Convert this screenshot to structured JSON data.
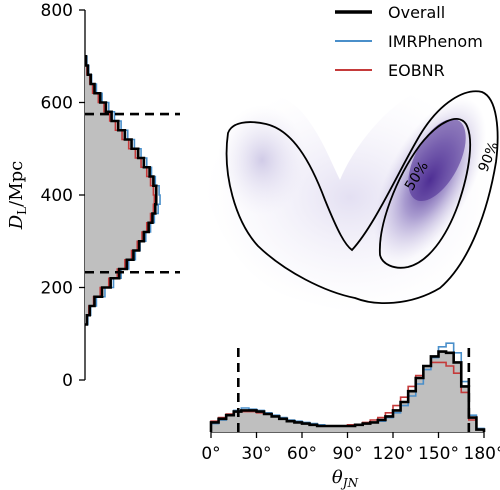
{
  "chart_data": [
    {
      "panel": "distance-marginal",
      "type": "histogram",
      "ylabel_main": "D",
      "ylabel_sub": "L",
      "ylabel_unit": "/Mpc",
      "ylim": [
        0,
        800
      ],
      "yticks": [
        0,
        200,
        400,
        600,
        800
      ],
      "bins": [
        120,
        140,
        160,
        180,
        200,
        220,
        240,
        260,
        280,
        300,
        320,
        340,
        360,
        380,
        400,
        420,
        440,
        460,
        480,
        500,
        520,
        540,
        560,
        580,
        600,
        620,
        640,
        660,
        680
      ],
      "series": [
        {
          "name": "Overall",
          "color": "#000000",
          "filled": true,
          "fill": "#bfbfbf",
          "values": [
            2,
            5,
            10,
            18,
            27,
            36,
            44,
            51,
            57,
            62,
            67,
            71,
            74,
            75,
            75,
            72,
            68,
            62,
            56,
            49,
            42,
            35,
            28,
            22,
            16,
            10,
            6,
            3,
            1
          ]
        },
        {
          "name": "IMRPhenom",
          "color": "#4a8fca",
          "values": [
            3,
            6,
            12,
            21,
            30,
            38,
            46,
            53,
            58,
            64,
            69,
            73,
            77,
            79,
            78,
            74,
            70,
            65,
            59,
            52,
            45,
            38,
            31,
            25,
            18,
            12,
            7,
            4,
            2
          ]
        },
        {
          "name": "EOBNR",
          "color": "#c53a3a",
          "values": [
            2,
            4,
            9,
            16,
            25,
            34,
            42,
            49,
            55,
            60,
            65,
            69,
            72,
            73,
            72,
            69,
            65,
            59,
            53,
            46,
            39,
            32,
            26,
            20,
            14,
            8,
            5,
            2,
            1
          ]
        }
      ],
      "hlines": [
        233,
        575
      ]
    },
    {
      "panel": "inclination-marginal",
      "type": "histogram",
      "xlabel": "θ",
      "xlabel_sub": "JN",
      "xlim": [
        0,
        180
      ],
      "xticks": [
        0,
        30,
        60,
        90,
        120,
        150,
        180
      ],
      "xtick_labels": [
        "0°",
        "30°",
        "60°",
        "90°",
        "120°",
        "150°",
        "180°"
      ],
      "bins": [
        0,
        5,
        10,
        15,
        20,
        25,
        30,
        35,
        40,
        45,
        50,
        55,
        60,
        65,
        70,
        75,
        80,
        85,
        90,
        95,
        100,
        105,
        110,
        115,
        120,
        125,
        130,
        135,
        140,
        145,
        150,
        155,
        160,
        165,
        170,
        175
      ],
      "series": [
        {
          "name": "Overall",
          "color": "#000000",
          "filled": true,
          "fill": "#bfbfbf",
          "values": [
            8,
            11,
            14,
            17,
            18,
            18,
            17,
            15,
            13,
            11,
            9,
            8,
            7,
            6,
            5,
            5,
            5,
            5,
            5,
            6,
            7,
            8,
            10,
            13,
            18,
            25,
            34,
            45,
            55,
            63,
            67,
            66,
            58,
            38,
            12,
            2
          ]
        },
        {
          "name": "IMRPhenom",
          "color": "#4a8fca",
          "values": [
            7,
            10,
            14,
            18,
            20,
            19,
            18,
            16,
            14,
            12,
            10,
            9,
            8,
            7,
            6,
            5,
            5,
            5,
            5,
            6,
            7,
            8,
            9,
            12,
            16,
            22,
            30,
            40,
            52,
            62,
            71,
            74,
            66,
            42,
            14,
            3
          ]
        },
        {
          "name": "EOBNR",
          "color": "#c53a3a",
          "values": [
            9,
            12,
            15,
            17,
            17,
            17,
            16,
            15,
            13,
            11,
            9,
            8,
            7,
            6,
            5,
            5,
            5,
            5,
            6,
            6,
            8,
            10,
            12,
            16,
            22,
            29,
            38,
            47,
            55,
            58,
            58,
            55,
            49,
            33,
            10,
            2
          ]
        }
      ],
      "vlines": [
        18,
        170
      ]
    },
    {
      "panel": "joint-density",
      "type": "contour",
      "legend": {
        "placement": "top-right",
        "entries": [
          "Overall",
          "IMRPhenom",
          "EOBNR"
        ]
      },
      "contours": [
        {
          "label": "50%",
          "level": 0.5
        },
        {
          "label": "90%",
          "level": 0.9
        }
      ],
      "density_color": "#4b2a91"
    }
  ]
}
